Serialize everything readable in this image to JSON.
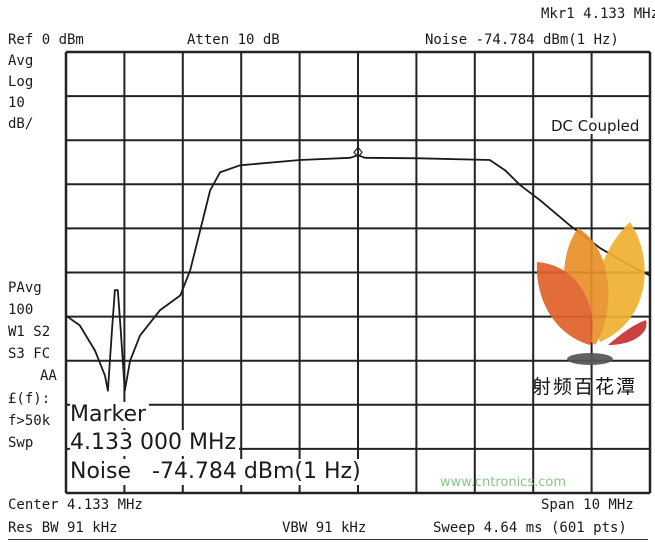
{
  "header": {
    "marker_label": "Mkr1  4.133 MHz",
    "ref_level": "Ref 0 dBm",
    "attenuation": "Atten 10 dB",
    "noise_readout": "Noise  -74.784 dBm(1 Hz)"
  },
  "left_panel": {
    "avg": "Avg",
    "log": "Log",
    "scale_value": "10",
    "scale_unit": "dB/",
    "pavg": "PAvg",
    "pavg_count": "100",
    "w1s2": "W1  S2",
    "s3fc": "S3  FC",
    "aa": "AA",
    "ef": "£(f):",
    "f50k": "f>50k",
    "swp": "Swp"
  },
  "coupling": "DC Coupled",
  "marker_box": {
    "title": "Marker",
    "frequency": "4.133 000 MHz",
    "noise": "Noise   -74.784 dBm(1 Hz)"
  },
  "footer": {
    "center": "Center 4.133 MHz",
    "span": "Span 10 MHz",
    "res_bw": "Res BW 91 kHz",
    "vbw": "VBW 91 kHz",
    "sweep": "Sweep 4.64 ms (601 pts)"
  },
  "logo": {
    "text": "射频百花潭",
    "watermark": "www.cntronics.com",
    "colors": [
      "#f0b030",
      "#e8902a",
      "#e0602a",
      "#c83030",
      "#555555"
    ]
  },
  "chart_data": {
    "type": "line",
    "title": "",
    "xlabel": "",
    "ylabel": "",
    "x_unit": "MHz",
    "y_unit": "dBm",
    "xlim": [
      -0.867,
      9.133
    ],
    "ylim": [
      -100,
      0
    ],
    "x_divisions": 10,
    "y_divisions": 10,
    "grid": true,
    "trace_color": "#1a1a1a",
    "series": [
      {
        "x": [
          -0.867,
          -0.63,
          -0.37,
          -0.2,
          -0.15,
          -0.08,
          -0.03,
          0.02,
          0.07,
          0.14,
          0.23,
          0.4,
          0.74,
          1.09,
          1.26,
          1.43,
          1.6,
          1.77,
          2.11,
          3.14,
          4.0,
          4.133,
          4.25,
          5.19,
          6.39,
          6.65,
          6.91,
          7.25,
          7.76,
          8.28,
          8.79,
          9.133
        ],
        "y": [
          -59.8,
          -62,
          -67.7,
          -73.4,
          -76.8,
          -63,
          -54,
          -54,
          -63,
          -76.8,
          -70,
          -64.3,
          -58.6,
          -55.2,
          -49.5,
          -40.5,
          -31.4,
          -27.3,
          -25.7,
          -24.5,
          -24,
          -23.4,
          -24,
          -24.1,
          -24.5,
          -26.8,
          -30.2,
          -33.6,
          -39.3,
          -44.5,
          -48.4,
          -50.7
        ]
      }
    ],
    "marker": {
      "x": 4.133,
      "label": "Mkr1"
    }
  }
}
